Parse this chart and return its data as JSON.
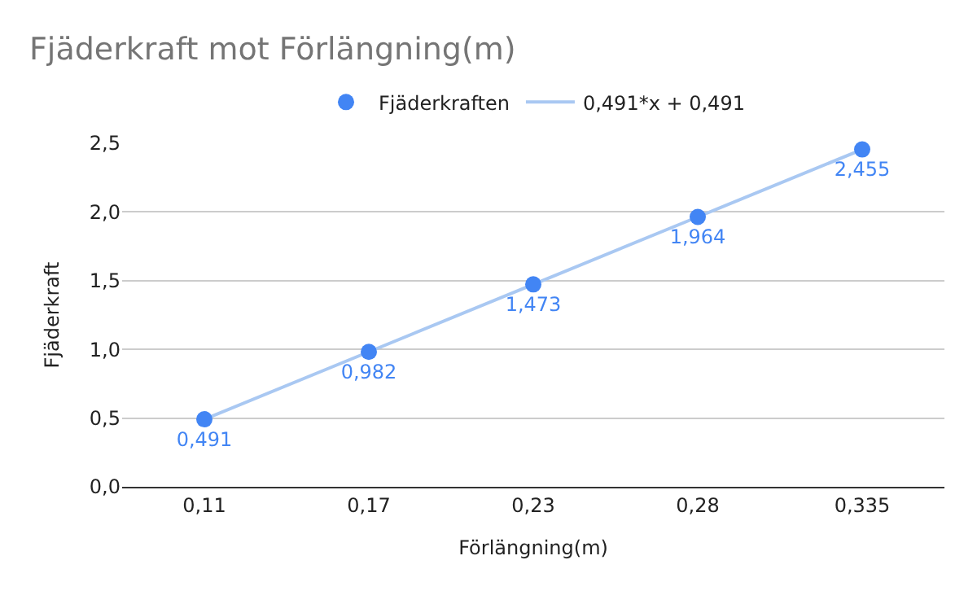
{
  "chart_data": {
    "type": "scatter",
    "title": "Fjäderkraft mot Förlängning(m)",
    "xlabel": "Förlängning(m)",
    "ylabel": "Fjäderkraft",
    "categories": [
      "0,11",
      "0,17",
      "0,23",
      "0,28",
      "0,335"
    ],
    "series": [
      {
        "name": "Fjäderkraften",
        "marker": "circle",
        "color": "#4285f4",
        "values": [
          0.491,
          0.982,
          1.473,
          1.964,
          2.455
        ],
        "value_labels": [
          "0,491",
          "0,982",
          "1,473",
          "1,964",
          "2,455"
        ]
      },
      {
        "name": "0,491*x + 0,491",
        "type": "line",
        "color": "#a9c8f2",
        "values": [
          0.491,
          0.982,
          1.473,
          1.964,
          2.455
        ]
      }
    ],
    "ylim": [
      0,
      2.5
    ],
    "yticks": [
      {
        "value": 0,
        "label": "0,0"
      },
      {
        "value": 0.5,
        "label": "0,5"
      },
      {
        "value": 1,
        "label": "1,0"
      },
      {
        "value": 1.5,
        "label": "1,5"
      },
      {
        "value": 2,
        "label": "2,0"
      },
      {
        "value": 2.5,
        "label": "2,5"
      }
    ],
    "grid": "y",
    "legend": "top",
    "line_style": "solid"
  }
}
